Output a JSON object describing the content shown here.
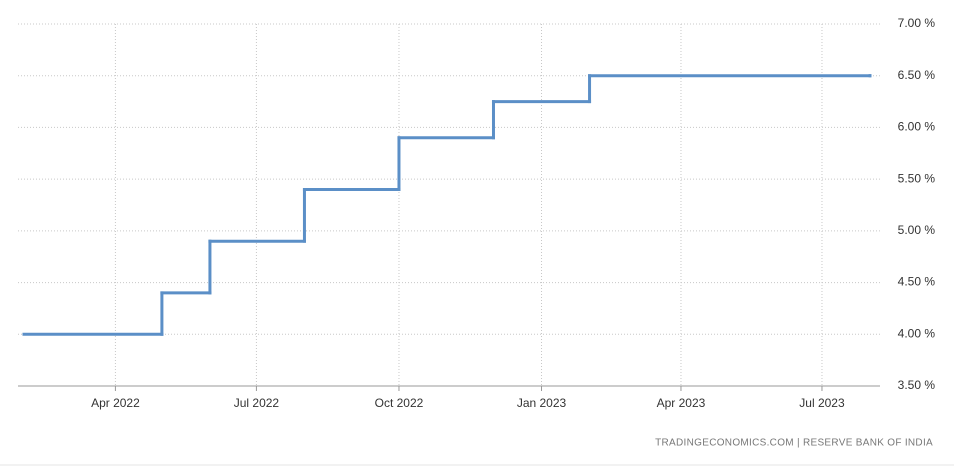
{
  "chart_data": {
    "type": "step",
    "x": [
      "2022-02",
      "2022-05",
      "2022-06",
      "2022-08",
      "2022-10",
      "2022-12",
      "2023-02",
      "2023-08"
    ],
    "series": [
      {
        "color": "#5b8fc7",
        "values": [
          4.0,
          4.4,
          4.9,
          5.4,
          5.9,
          6.25,
          6.5,
          6.5
        ]
      }
    ],
    "xlim": [
      "2022-02",
      "2023-08"
    ],
    "xticks": [
      {
        "value": "2022-04",
        "label": "Apr 2022"
      },
      {
        "value": "2022-07",
        "label": "Jul 2022"
      },
      {
        "value": "2022-10",
        "label": "Oct 2022"
      },
      {
        "value": "2023-01",
        "label": "Jan 2023"
      },
      {
        "value": "2023-04",
        "label": "Apr 2023"
      },
      {
        "value": "2023-07",
        "label": "Jul 2023"
      }
    ],
    "ylim": [
      3.5,
      7.0
    ],
    "yticks": [
      {
        "value": 3.5,
        "label": "3.50 %"
      },
      {
        "value": 4.0,
        "label": "4.00 %"
      },
      {
        "value": 4.5,
        "label": "4.50 %"
      },
      {
        "value": 5.0,
        "label": "5.00 %"
      },
      {
        "value": 5.5,
        "label": "5.50 %"
      },
      {
        "value": 6.0,
        "label": "6.00 %"
      },
      {
        "value": 6.5,
        "label": "6.50 %"
      },
      {
        "value": 7.0,
        "label": "7.00 %"
      }
    ],
    "grid": true,
    "source": "TRADINGECONOMICS.COM | RESERVE BANK OF INDIA"
  }
}
